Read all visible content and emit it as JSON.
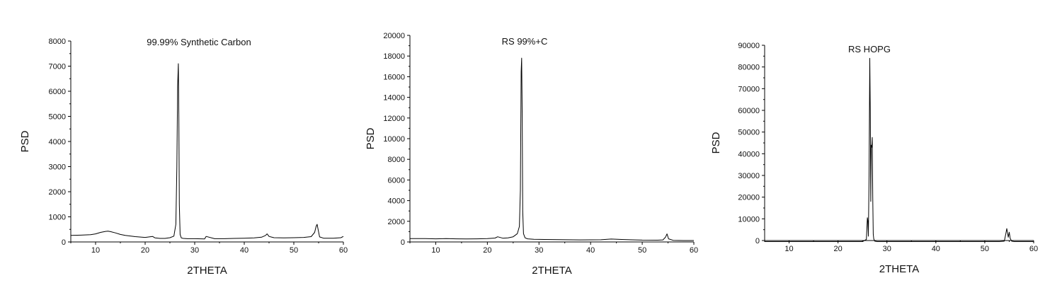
{
  "chart_data": [
    {
      "type": "line",
      "title": "99.99% Synthetic Carbon",
      "xlabel": "2THETA",
      "ylabel": "PSD",
      "xlim": [
        5,
        60
      ],
      "ylim": [
        0,
        8000
      ],
      "xticks": [
        10,
        20,
        30,
        40,
        50,
        60
      ],
      "yticks": [
        0,
        1000,
        2000,
        3000,
        4000,
        5000,
        6000,
        7000,
        8000
      ],
      "grid": false,
      "legend": "none",
      "color": "#000000",
      "series": [
        {
          "x": [
            5,
            7,
            9,
            10,
            11,
            12,
            12.5,
            13,
            14,
            15,
            16,
            18,
            20,
            21.5,
            22,
            23,
            24,
            25,
            25.8,
            26.2,
            26.4,
            26.55,
            26.7,
            26.8,
            26.9,
            27.05,
            27.3,
            27.7,
            28.5,
            30,
            32,
            32.3,
            34,
            36,
            38,
            40,
            42,
            43.5,
            44.3,
            44.6,
            45,
            46,
            48,
            50,
            52,
            53.5,
            54.2,
            54.5,
            54.7,
            54.9,
            55.2,
            56,
            58,
            59.5,
            60
          ],
          "y": [
            260,
            270,
            290,
            320,
            380,
            420,
            430,
            410,
            360,
            300,
            260,
            210,
            180,
            220,
            160,
            140,
            140,
            170,
            230,
            700,
            3000,
            6200,
            7100,
            5000,
            1500,
            300,
            160,
            140,
            130,
            130,
            120,
            220,
            130,
            130,
            140,
            150,
            160,
            190,
            260,
            320,
            220,
            170,
            160,
            170,
            180,
            210,
            380,
            620,
            700,
            500,
            200,
            150,
            150,
            170,
            220
          ]
        }
      ]
    },
    {
      "type": "line",
      "title": "RS 99%+C",
      "xlabel": "2THETA",
      "ylabel": "PSD",
      "xlim": [
        5,
        60
      ],
      "ylim": [
        0,
        20000
      ],
      "xticks": [
        10,
        20,
        30,
        40,
        50,
        60
      ],
      "yticks": [
        0,
        2000,
        4000,
        6000,
        8000,
        10000,
        12000,
        14000,
        16000,
        18000,
        20000
      ],
      "grid": false,
      "legend": "none",
      "color": "#000000",
      "series": [
        {
          "x": [
            5,
            8,
            10,
            12,
            14,
            16,
            18,
            20,
            21.5,
            22,
            23,
            24,
            25,
            25.8,
            26.2,
            26.4,
            26.55,
            26.65,
            26.75,
            26.85,
            27,
            27.3,
            27.8,
            29,
            31,
            34,
            38,
            42,
            44,
            46,
            50,
            53,
            54,
            54.5,
            54.8,
            55.1,
            56,
            58,
            60
          ],
          "y": [
            330,
            320,
            300,
            320,
            300,
            290,
            300,
            320,
            380,
            500,
            360,
            400,
            500,
            800,
            1500,
            5000,
            16500,
            17800,
            12000,
            3000,
            800,
            400,
            300,
            260,
            240,
            220,
            200,
            210,
            280,
            240,
            180,
            170,
            200,
            450,
            780,
            300,
            160,
            140,
            140
          ]
        }
      ]
    },
    {
      "type": "line",
      "title": "RS HOPG",
      "xlabel": "2THETA",
      "ylabel": "PSD",
      "xlim": [
        5,
        60
      ],
      "ylim": [
        0,
        90000
      ],
      "xticks": [
        10,
        20,
        30,
        40,
        50,
        60
      ],
      "yticks": [
        0,
        10000,
        20000,
        30000,
        40000,
        50000,
        60000,
        70000,
        80000,
        90000
      ],
      "grid": false,
      "legend": "none",
      "color": "#000000",
      "series": [
        {
          "x": [
            5,
            10,
            15,
            20,
            25,
            25.8,
            26,
            26.1,
            26.2,
            26.35,
            26.5,
            26.6,
            26.7,
            26.8,
            26.9,
            27,
            27.1,
            27.2,
            27.3,
            27.5,
            28,
            30,
            35,
            40,
            45,
            50,
            53,
            54,
            54.3,
            54.5,
            54.7,
            54.8,
            55,
            55.2,
            55.5,
            56,
            58,
            60
          ],
          "y": [
            -500,
            -500,
            -500,
            -500,
            -500,
            500,
            10500,
            9000,
            2000,
            30000,
            84000,
            60000,
            18000,
            44000,
            43000,
            47500,
            20000,
            3000,
            800,
            -300,
            -500,
            -500,
            -500,
            -500,
            -500,
            -500,
            -500,
            -300,
            3000,
            5500,
            3000,
            1500,
            3800,
            1000,
            -300,
            -500,
            -500,
            -500
          ]
        }
      ]
    }
  ]
}
